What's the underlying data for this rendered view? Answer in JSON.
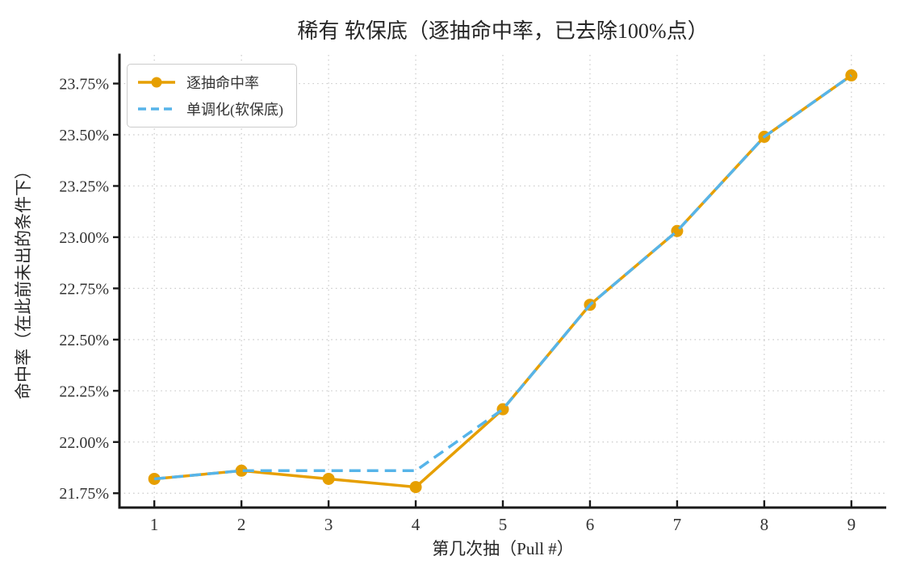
{
  "chart_data": {
    "type": "line",
    "title": "稀有 软保底（逐抽命中率，已去除100%点）",
    "xlabel": "第几次抽（Pull #）",
    "ylabel": "命中率（在此前未出的条件下）",
    "x": [
      1,
      2,
      3,
      4,
      5,
      6,
      7,
      8,
      9
    ],
    "series": [
      {
        "name": "逐抽命中率",
        "style": "solid-with-circle-markers",
        "color": "#E69F00",
        "values": [
          21.82,
          21.86,
          21.82,
          21.78,
          22.16,
          22.67,
          23.03,
          23.49,
          23.79
        ]
      },
      {
        "name": "单调化(软保底)",
        "style": "dashed",
        "color": "#56B4E9",
        "values": [
          21.82,
          21.86,
          21.86,
          21.86,
          22.16,
          22.67,
          23.03,
          23.49,
          23.79
        ]
      }
    ],
    "xlim": [
      0.6,
      9.4
    ],
    "ylim": [
      21.68,
      23.89
    ],
    "xticks": [
      1,
      2,
      3,
      4,
      5,
      6,
      7,
      8,
      9
    ],
    "xtick_labels": [
      "1",
      "2",
      "3",
      "4",
      "5",
      "6",
      "7",
      "8",
      "9"
    ],
    "yticks": [
      21.75,
      22.0,
      22.25,
      22.5,
      22.75,
      23.0,
      23.25,
      23.5,
      23.75
    ],
    "ytick_labels": [
      "21.75%",
      "22.00%",
      "22.25%",
      "22.50%",
      "22.75%",
      "23.00%",
      "23.25%",
      "23.50%",
      "23.75%"
    ],
    "unit": "percent",
    "grid": true,
    "grid_color": "#c9c9c9",
    "spine_color": "#1a1a1a",
    "tick_label_color": "#333333",
    "legend_position": "upper left"
  }
}
